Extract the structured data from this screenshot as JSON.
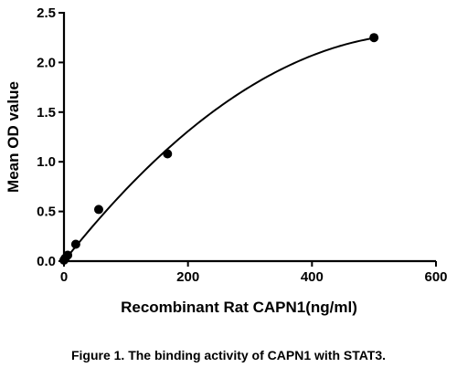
{
  "chart_data": {
    "type": "scatter",
    "title": "",
    "xlabel": "Recombinant Rat CAPN1(ng/ml)",
    "ylabel": "Mean OD value",
    "xlim": [
      0,
      600
    ],
    "ylim": [
      0,
      2.5
    ],
    "x_ticks": [
      0,
      200,
      400,
      600
    ],
    "x_tick_labels": [
      "0",
      "200",
      "400",
      "600"
    ],
    "y_ticks": [
      0,
      0.5,
      1.0,
      1.5,
      2.0,
      2.5
    ],
    "y_tick_labels": [
      "0.0",
      "0.5",
      "1.0",
      "1.5",
      "2.0",
      "2.5"
    ],
    "grid": false,
    "fit_line": true,
    "series": [
      {
        "x": [
          0,
          2,
          6,
          19,
          56,
          167,
          500
        ],
        "y": [
          0.01,
          0.03,
          0.06,
          0.17,
          0.52,
          1.08,
          2.25
        ]
      }
    ]
  },
  "caption": "Figure 1. The binding activity of CAPN1 with STAT3."
}
